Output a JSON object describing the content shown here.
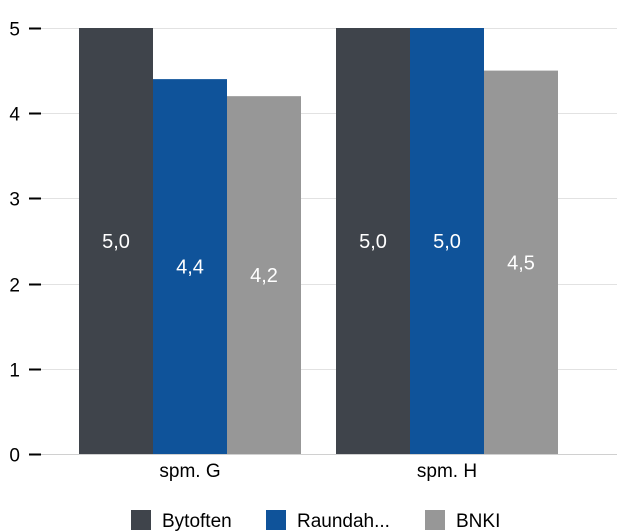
{
  "chart_data": {
    "type": "bar",
    "categories": [
      "spm. G",
      "spm. H"
    ],
    "series": [
      {
        "name": "Bytoften",
        "values": [
          5.0,
          5.0
        ],
        "labels": [
          "5,0",
          "5,0"
        ],
        "color": "#3f444b"
      },
      {
        "name": "Raundah...",
        "values": [
          4.4,
          5.0
        ],
        "labels": [
          "4,4",
          "5,0"
        ],
        "color": "#0f539a"
      },
      {
        "name": "BNKI",
        "values": [
          4.2,
          4.5
        ],
        "labels": [
          "4,2",
          "4,5"
        ],
        "color": "#979797"
      }
    ],
    "ylim": [
      0,
      5
    ],
    "yticks": [
      0,
      1,
      2,
      3,
      4,
      5
    ],
    "ytick_labels": [
      "0",
      "1",
      "2",
      "3",
      "4",
      "5"
    ],
    "grid": true,
    "legend_position": "bottom",
    "title": "",
    "xlabel": "",
    "ylabel": ""
  }
}
